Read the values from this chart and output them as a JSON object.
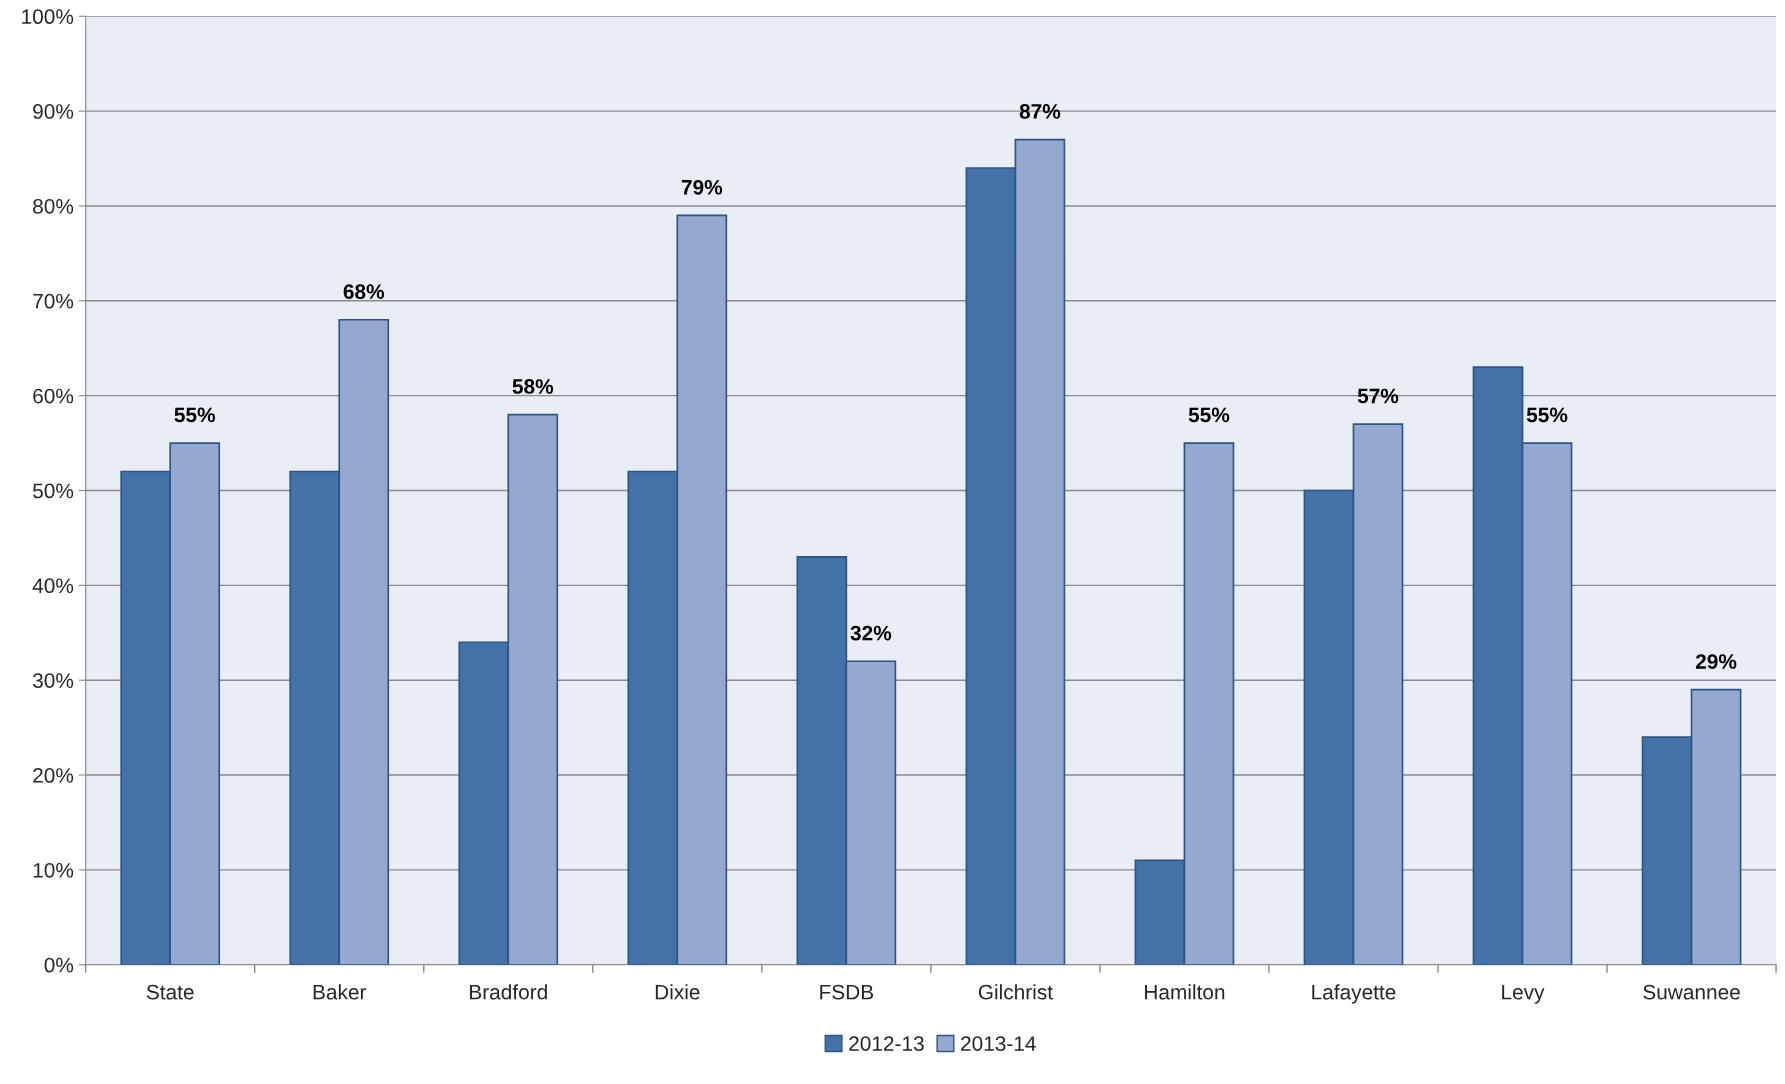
{
  "chart_data": {
    "type": "bar",
    "categories": [
      "State",
      "Baker",
      "Bradford",
      "Dixie",
      "FSDB",
      "Gilchrist",
      "Hamilton",
      "Lafayette",
      "Levy",
      "Suwannee"
    ],
    "series": [
      {
        "name": "2012-13",
        "color": "#4472a8",
        "values": [
          52,
          52,
          34,
          52,
          43,
          84,
          11,
          50,
          63,
          24
        ]
      },
      {
        "name": "2013-14",
        "color": "#95a9d0",
        "values": [
          55,
          68,
          58,
          79,
          32,
          87,
          55,
          57,
          55,
          29
        ],
        "value_labels": [
          "55%",
          "68%",
          "58%",
          "79%",
          "32%",
          "87%",
          "55%",
          "57%",
          "55%",
          "29%"
        ]
      }
    ],
    "ylim": [
      0,
      100
    ],
    "yticks": [
      {
        "value": 0,
        "label": "0%"
      },
      {
        "value": 10,
        "label": "10%"
      },
      {
        "value": 20,
        "label": "20%"
      },
      {
        "value": 30,
        "label": "30%"
      },
      {
        "value": 40,
        "label": "40%"
      },
      {
        "value": 50,
        "label": "50%"
      },
      {
        "value": 60,
        "label": "60%"
      },
      {
        "value": 70,
        "label": "70%"
      },
      {
        "value": 80,
        "label": "80%"
      },
      {
        "value": 90,
        "label": "90%"
      },
      {
        "value": 100,
        "label": "100%"
      }
    ],
    "grid": "y",
    "legend": "bottom"
  }
}
